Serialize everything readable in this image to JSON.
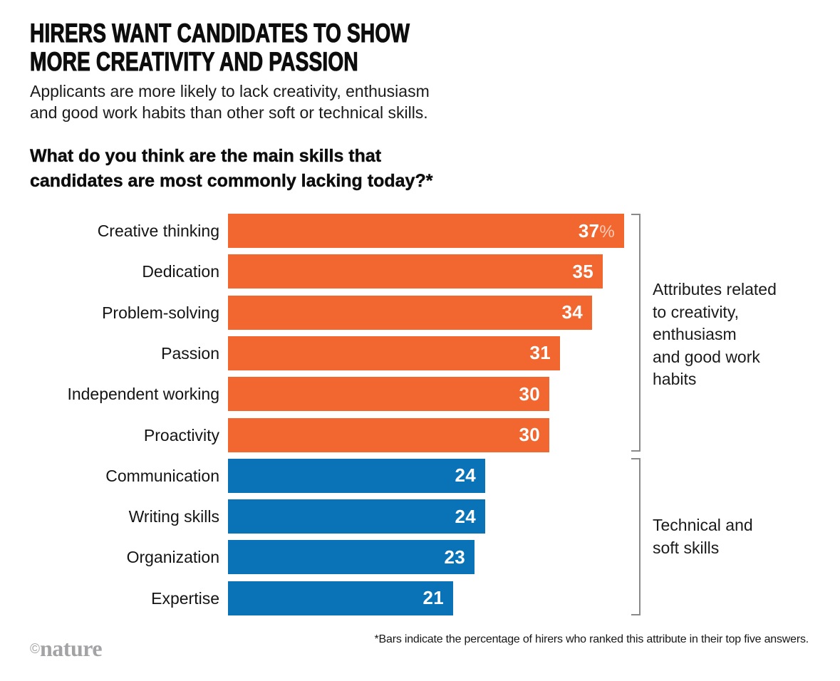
{
  "header": {
    "title": "HIRERS WANT CANDIDATES TO SHOW\nMORE CREATIVITY AND PASSION",
    "subtitle": "Applicants are more likely to lack creativity, enthusiasm\nand good work habits than other soft or technical skills.",
    "question": "What do you think are the main skills that\ncandidates are most commonly lacking today?*"
  },
  "chart_data": {
    "type": "bar",
    "orientation": "horizontal",
    "value_unit": "percent",
    "value_suffix_on_first_bar": "%",
    "xlim": [
      0,
      40
    ],
    "grid": false,
    "categories": [
      "Creative thinking",
      "Dedication",
      "Problem-solving",
      "Passion",
      "Independent working",
      "Proactivity",
      "Communication",
      "Writing skills",
      "Organization",
      "Expertise"
    ],
    "values": [
      37,
      35,
      34,
      31,
      30,
      30,
      24,
      24,
      23,
      21
    ],
    "value_label_color": "#FFFFFF",
    "groups": [
      {
        "name": "creativity-enthusiasm-work-habits",
        "label": "Attributes related to creativity, enthusiasm and good work habits",
        "label_multiline": "Attributes related\nto creativity,\nenthusiasm\nand good work\nhabits",
        "color": "#F1672F",
        "categories": [
          "Creative thinking",
          "Dedication",
          "Problem-solving",
          "Passion",
          "Independent working",
          "Proactivity"
        ],
        "values": [
          37,
          35,
          34,
          31,
          30,
          30
        ]
      },
      {
        "name": "technical-soft-skills",
        "label": "Technical and soft skills",
        "label_multiline": "Technical and\nsoft skills",
        "color": "#0A73B8",
        "categories": [
          "Communication",
          "Writing skills",
          "Organization",
          "Expertise"
        ],
        "values": [
          24,
          24,
          23,
          21
        ]
      }
    ]
  },
  "footnote": "*Bars indicate the percentage of hirers who ranked this attribute in their top five answers.",
  "logo": {
    "copyright": "©",
    "name": "nature"
  }
}
